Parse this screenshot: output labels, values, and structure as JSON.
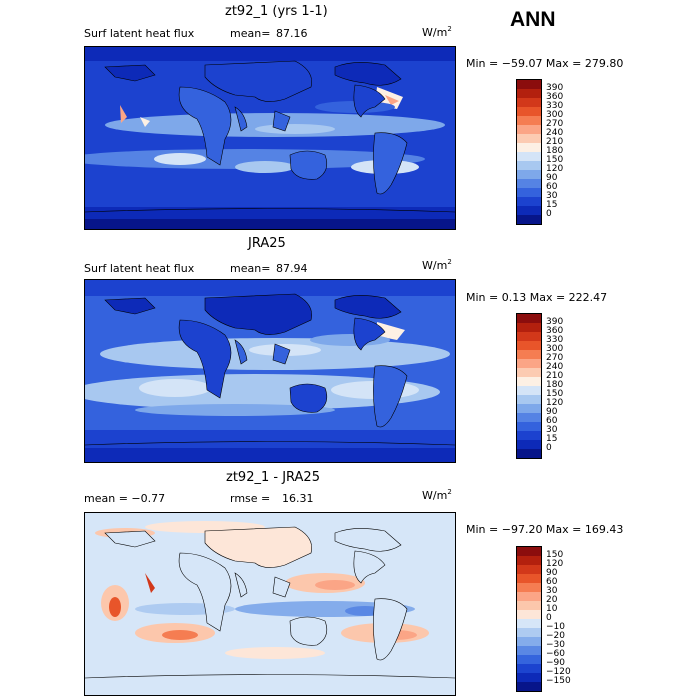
{
  "season": "ANN",
  "panels": [
    {
      "title": "zt92_1 (yrs 1-1)",
      "left_label": "Surf latent heat flux",
      "stat_label": "mean=",
      "stat_value": "87.16",
      "unit": "W/m",
      "unit_exp": "2",
      "minmax": "Min = −59.07 Max = 279.80",
      "cbar_labels": [
        "390",
        "360",
        "330",
        "300",
        "270",
        "240",
        "210",
        "180",
        "150",
        "120",
        "90",
        "60",
        "30",
        "15",
        "0"
      ],
      "cbar_colors": [
        "#8b0d0d",
        "#b3200e",
        "#d2381a",
        "#e8552a",
        "#f57d52",
        "#fba586",
        "#fccbb2",
        "#fdf0e4",
        "#d4e4f7",
        "#a8c8f0",
        "#7ea8ea",
        "#5583e4",
        "#3462dd",
        "#1c42cf",
        "#0d2ab8",
        "#07158a"
      ]
    },
    {
      "title": "JRA25",
      "left_label": "Surf latent heat flux",
      "stat_label": "mean=",
      "stat_value": "87.94",
      "unit": "W/m",
      "unit_exp": "2",
      "minmax": "Min =   0.13 Max = 222.47",
      "cbar_labels": [
        "390",
        "360",
        "330",
        "300",
        "270",
        "240",
        "210",
        "180",
        "150",
        "120",
        "90",
        "60",
        "30",
        "15",
        "0"
      ],
      "cbar_colors": [
        "#8b0d0d",
        "#b3200e",
        "#d2381a",
        "#e8552a",
        "#f57d52",
        "#fba586",
        "#fccbb2",
        "#fdf0e4",
        "#d4e4f7",
        "#a8c8f0",
        "#7ea8ea",
        "#5583e4",
        "#3462dd",
        "#1c42cf",
        "#0d2ab8",
        "#07158a"
      ]
    },
    {
      "title": "zt92_1 - JRA25",
      "left_label": "mean =  −0.77",
      "stat_label": "rmse =",
      "stat_value": "16.31",
      "unit": "W/m",
      "unit_exp": "2",
      "minmax": "Min = −97.20 Max = 169.43",
      "cbar_labels": [
        "150",
        "120",
        "90",
        "60",
        "30",
        "20",
        "10",
        "0",
        "−10",
        "−20",
        "−30",
        "−60",
        "−90",
        "−120",
        "−150"
      ],
      "cbar_colors": [
        "#8b0d0d",
        "#b3200e",
        "#d2381a",
        "#e8552a",
        "#f57d52",
        "#fba586",
        "#fcc7ac",
        "#fde6d8",
        "#d6e6f8",
        "#aecbf1",
        "#84aceb",
        "#5a88e4",
        "#3565dd",
        "#1c44cf",
        "#0d2ab8",
        "#07158a"
      ]
    }
  ]
}
